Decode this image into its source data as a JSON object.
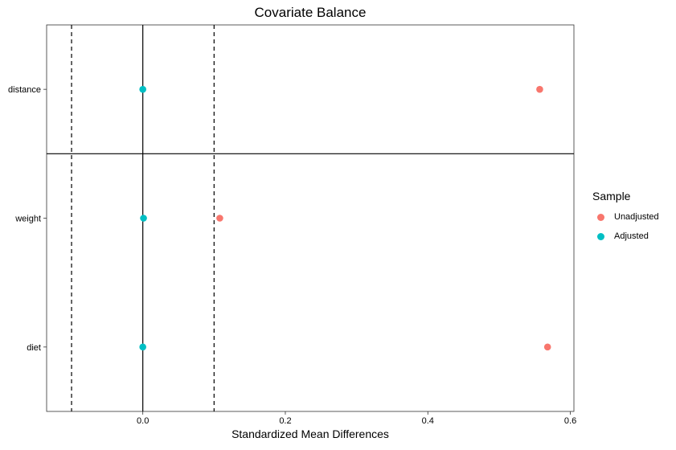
{
  "chart_data": {
    "type": "scatter",
    "title": "Covariate Balance",
    "xlabel": "Standardized Mean Differences",
    "ylabel": "",
    "categories": [
      "distance",
      "weight",
      "diet"
    ],
    "xlim": [
      -0.135,
      0.605
    ],
    "x_ticks": [
      0.0,
      0.2,
      0.4,
      0.6
    ],
    "x_tick_labels": [
      "0.0",
      "0.2",
      "0.4",
      "0.6"
    ],
    "reference_lines": {
      "solid": 0.0,
      "dashed": [
        -0.1,
        0.1
      ],
      "separator_after": "distance"
    },
    "legend": {
      "title": "Sample",
      "placement": "right"
    },
    "series": [
      {
        "name": "Unadjusted",
        "color": "#F8766D",
        "values": [
          0.557,
          0.108,
          0.568
        ]
      },
      {
        "name": "Adjusted",
        "color": "#00BFC4",
        "values": [
          0.0,
          0.001,
          0.0
        ]
      }
    ],
    "grid": false
  }
}
